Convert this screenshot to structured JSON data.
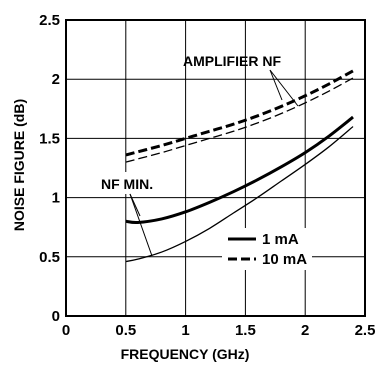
{
  "chart_data": {
    "type": "line",
    "title": "",
    "xlabel": "FREQUENCY (GHz)",
    "ylabel": "NOISE FIGURE (dB)",
    "xlim": [
      0,
      2.5
    ],
    "ylim": [
      0,
      2.5
    ],
    "x_ticks": [
      "0",
      "0.5",
      "1",
      "1.5",
      "2",
      "2.5"
    ],
    "y_ticks": [
      "0",
      "0.5",
      "1",
      "1.5",
      "2",
      "2.5"
    ],
    "grid": true,
    "legend_position": "right-middle",
    "legend": [
      {
        "label": "1 mA",
        "style": "solid"
      },
      {
        "label": "10 mA",
        "style": "dashed"
      }
    ],
    "annotations": [
      "AMPLIFIER NF",
      "NF MIN."
    ],
    "series": [
      {
        "group": "NF MIN.",
        "current": "1 mA",
        "style": "solid",
        "weight": "thick",
        "x": [
          0.5,
          0.6,
          0.8,
          1.0,
          1.2,
          1.4,
          1.6,
          1.8,
          2.0,
          2.2,
          2.4
        ],
        "y": [
          0.8,
          0.79,
          0.82,
          0.88,
          0.96,
          1.05,
          1.15,
          1.26,
          1.38,
          1.52,
          1.68
        ]
      },
      {
        "group": "NF MIN.",
        "current": "10 mA",
        "style": "solid",
        "weight": "thin",
        "x": [
          0.5,
          0.6,
          0.8,
          1.0,
          1.2,
          1.4,
          1.6,
          1.8,
          2.0,
          2.2,
          2.4
        ],
        "y": [
          0.46,
          0.48,
          0.54,
          0.63,
          0.74,
          0.87,
          1.0,
          1.14,
          1.28,
          1.43,
          1.6
        ]
      },
      {
        "group": "AMPLIFIER NF",
        "current": "1 mA",
        "style": "dashed",
        "weight": "thick",
        "x": [
          0.5,
          0.8,
          1.0,
          1.2,
          1.4,
          1.6,
          1.8,
          2.0,
          2.2,
          2.4
        ],
        "y": [
          1.36,
          1.44,
          1.5,
          1.56,
          1.62,
          1.69,
          1.77,
          1.86,
          1.96,
          2.07
        ]
      },
      {
        "group": "AMPLIFIER NF",
        "current": "10 mA",
        "style": "dashed",
        "weight": "thin",
        "x": [
          0.5,
          0.8,
          1.0,
          1.2,
          1.4,
          1.6,
          1.8,
          2.0,
          2.2,
          2.4
        ],
        "y": [
          1.3,
          1.38,
          1.44,
          1.5,
          1.56,
          1.63,
          1.71,
          1.8,
          1.9,
          2.01
        ]
      }
    ]
  }
}
